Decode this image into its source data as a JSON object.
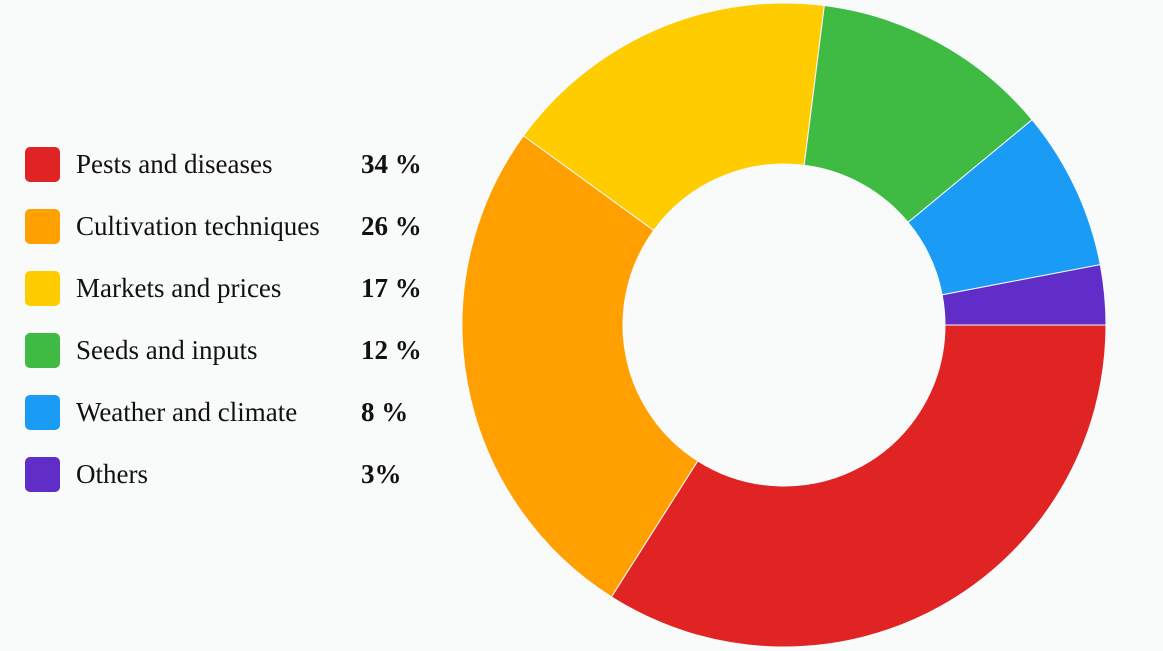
{
  "chart_data": {
    "type": "pie",
    "categories": [
      "Pests and diseases",
      "Cultivation techniques",
      "Markets and prices",
      "Seeds and inputs",
      "Weather and climate",
      "Others"
    ],
    "values": [
      34,
      26,
      17,
      12,
      8,
      3
    ],
    "value_labels": [
      "34 %",
      "26 %",
      "17 %",
      "12 %",
      "8 %",
      "3%"
    ],
    "colors": [
      "#e02424",
      "#ffa000",
      "#ffcc00",
      "#3fbb44",
      "#1a9bf6",
      "#602dc8"
    ],
    "donut": true,
    "legend_position": "left",
    "title": ""
  }
}
